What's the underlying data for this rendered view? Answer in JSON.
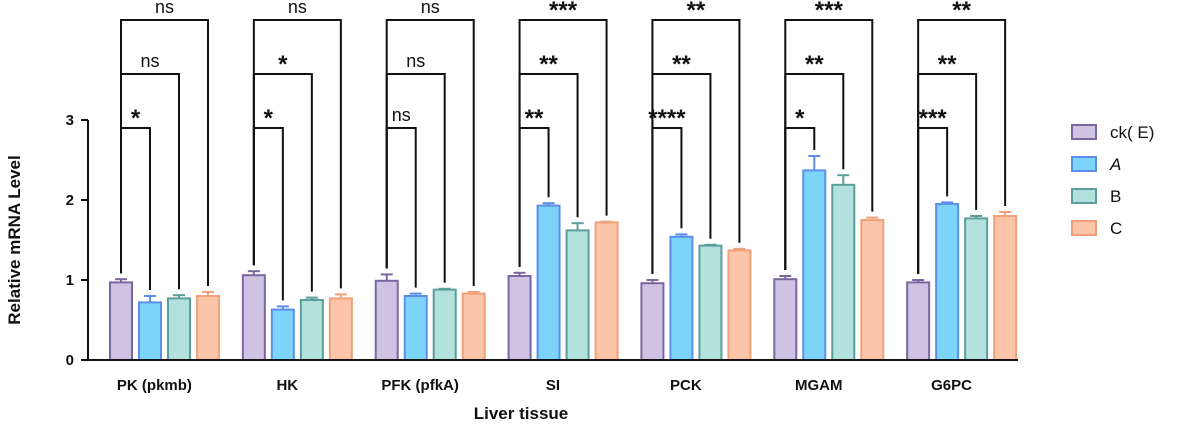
{
  "chart_data": {
    "type": "bar",
    "title": "",
    "xlabel": "Liver tissue",
    "ylabel": "Relative mRNA Level",
    "ylim": [
      0,
      3
    ],
    "yticks": [
      "0",
      "1",
      "2",
      "3"
    ],
    "categories": [
      "PK (pkmb)",
      "HK",
      "PFK (pfkA)",
      "SI",
      "PCK",
      "MGAM",
      "G6PC"
    ],
    "legend_position": "right",
    "series": [
      {
        "name": "ck( E)",
        "italic": false,
        "fill": "#cfc3e3",
        "stroke": "#7b679f",
        "values": [
          0.97,
          1.06,
          0.99,
          1.05,
          0.96,
          1.01,
          0.97
        ],
        "errors": [
          0.04,
          0.05,
          0.08,
          0.04,
          0.04,
          0.04,
          0.03
        ]
      },
      {
        "name": "A",
        "italic": true,
        "fill": "#7dd4fb",
        "stroke": "#5c8eea",
        "values": [
          0.72,
          0.63,
          0.8,
          1.93,
          1.54,
          2.37,
          1.95
        ],
        "errors": [
          0.08,
          0.04,
          0.03,
          0.03,
          0.03,
          0.18,
          0.02
        ]
      },
      {
        "name": "B",
        "italic": false,
        "fill": "#b3e2de",
        "stroke": "#5b9e9a",
        "values": [
          0.77,
          0.75,
          0.88,
          1.62,
          1.43,
          2.19,
          1.77
        ],
        "errors": [
          0.04,
          0.03,
          0.01,
          0.09,
          0.01,
          0.12,
          0.03
        ]
      },
      {
        "name": "C",
        "italic": false,
        "fill": "#fcc5aa",
        "stroke": "#f0a07a",
        "values": [
          0.8,
          0.77,
          0.83,
          1.72,
          1.37,
          1.75,
          1.8
        ],
        "errors": [
          0.05,
          0.05,
          0.02,
          0.01,
          0.02,
          0.03,
          0.05
        ]
      }
    ],
    "significance": [
      [
        "*",
        "ns",
        "ns"
      ],
      [
        "*",
        "*",
        "ns"
      ],
      [
        "ns",
        "ns",
        "ns"
      ],
      [
        "**",
        "**",
        "***"
      ],
      [
        "****",
        "**",
        "**"
      ],
      [
        "*",
        "**",
        "***"
      ],
      [
        "***",
        "**",
        "**"
      ]
    ]
  }
}
